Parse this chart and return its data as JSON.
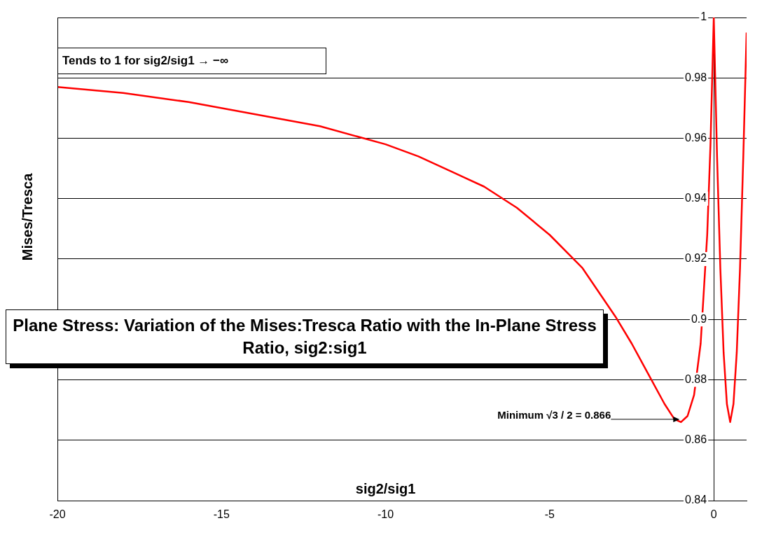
{
  "chart_data": {
    "type": "line",
    "title": "Plane Stress: Variation of the Mises:Tresca Ratio with the In-Plane Stress Ratio, sig2:sig1",
    "xlabel": "sig2/sig1",
    "ylabel": "Mises/Tresca",
    "x": [
      -20,
      -18,
      -16,
      -14,
      -12,
      -10,
      -9,
      -8,
      -7,
      -6,
      -5,
      -4,
      -3,
      -2.5,
      -2,
      -1.5,
      -1.2,
      -1,
      -0.8,
      -0.6,
      -0.4,
      -0.2,
      -0.1,
      0,
      0.1,
      0.2,
      0.3,
      0.4,
      0.5,
      0.6,
      0.7,
      0.8,
      0.9,
      1
    ],
    "series": [
      {
        "color": "#ff0000",
        "values": [
          0.977,
          0.975,
          0.972,
          0.968,
          0.964,
          0.958,
          0.954,
          0.949,
          0.944,
          0.937,
          0.928,
          0.917,
          0.901,
          0.892,
          0.882,
          0.872,
          0.867,
          0.866,
          0.868,
          0.875,
          0.892,
          0.928,
          0.958,
          1,
          0.954,
          0.917,
          0.889,
          0.872,
          0.866,
          0.872,
          0.889,
          0.917,
          0.954,
          0.995
        ]
      }
    ],
    "xlim": [
      -20,
      1
    ],
    "xticks": [
      -20,
      -15,
      -10,
      -5,
      0
    ],
    "ylim": [
      0.84,
      1
    ],
    "yticks": [
      0.84,
      0.86,
      0.88,
      0.9,
      0.92,
      0.94,
      0.96,
      0.98,
      1
    ],
    "grid": "y",
    "legend": false,
    "marker": "none",
    "line_style": "solid",
    "annotations": [
      "Tends to 1 for sig2/sig1 → −∞",
      {
        "text": "Minimum √3 / 2 = 0.866",
        "x": -1,
        "y": 0.866
      }
    ]
  }
}
